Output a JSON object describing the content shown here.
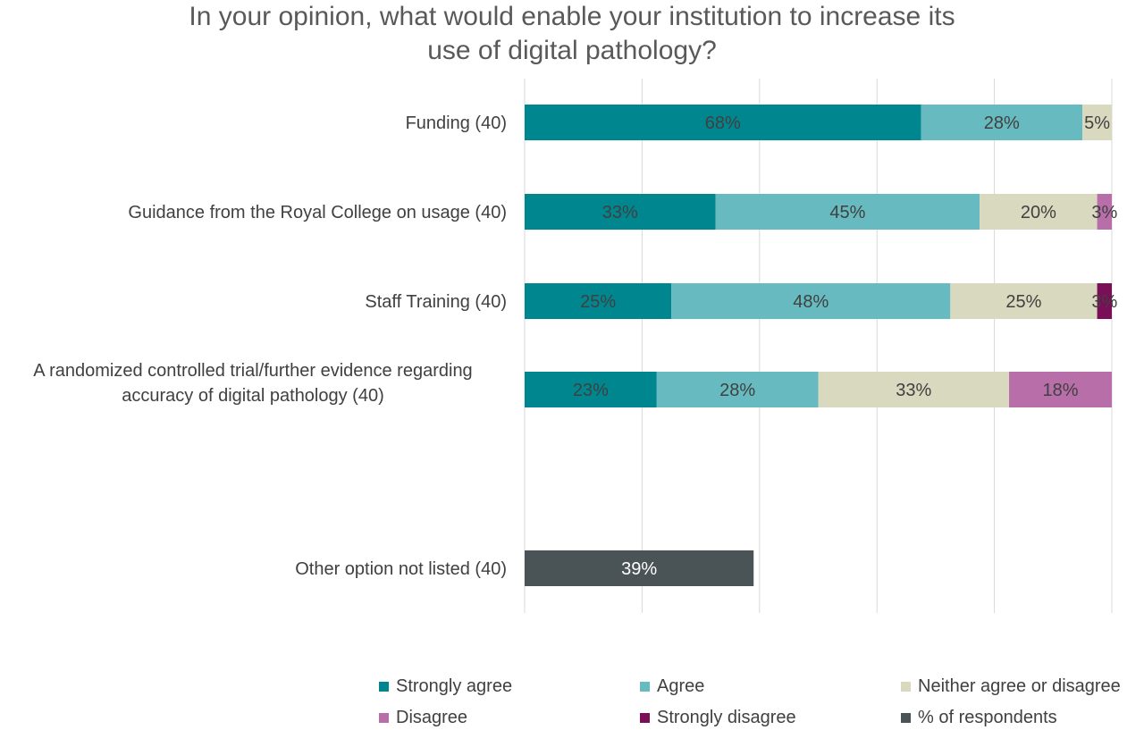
{
  "chart_data": {
    "type": "bar",
    "orientation": "horizontal",
    "stacked": true,
    "title_lines": [
      "In your opinion, what would enable your institution to increase its",
      "use of digital pathology?"
    ],
    "categories": [
      {
        "label_lines": [
          "Funding (40)"
        ]
      },
      {
        "label_lines": [
          "Guidance from the Royal College on usage (40)"
        ]
      },
      {
        "label_lines": [
          "Staff Training (40)"
        ]
      },
      {
        "label_lines": [
          "A randomized controlled trial/further evidence regarding",
          "accuracy of digital pathology (40)"
        ]
      },
      {
        "label_lines": []
      },
      {
        "label_lines": [
          "Other option not listed (40)"
        ]
      }
    ],
    "series": [
      {
        "name": "Strongly agree",
        "color": "#00868F",
        "label_color": "#404040",
        "values": [
          67.5,
          32.5,
          25,
          22.5,
          null,
          null
        ],
        "labels": [
          "68%",
          "33%",
          "25%",
          "23%",
          "",
          ""
        ]
      },
      {
        "name": "Agree",
        "color": "#67BBC0",
        "label_color": "#404040",
        "values": [
          27.5,
          45,
          47.5,
          27.5,
          null,
          null
        ],
        "labels": [
          "28%",
          "45%",
          "48%",
          "28%",
          "",
          ""
        ]
      },
      {
        "name": "Neither agree or disagree",
        "color": "#D9D9BF",
        "label_color": "#404040",
        "values": [
          5,
          20,
          25,
          32.5,
          null,
          null
        ],
        "labels": [
          "5%",
          "20%",
          "25%",
          "33%",
          "",
          ""
        ]
      },
      {
        "name": "Disagree",
        "color": "#B86EA8",
        "label_color": "#404040",
        "values": [
          0,
          2.5,
          0,
          17.5,
          null,
          null
        ],
        "labels": [
          "",
          "3%",
          "",
          "18%",
          "",
          ""
        ]
      },
      {
        "name": "Strongly disagree",
        "color": "#7A0E57",
        "label_color": "#404040",
        "values": [
          0,
          0,
          2.5,
          0,
          null,
          null
        ],
        "labels": [
          "",
          "",
          "3%",
          "",
          "",
          ""
        ]
      },
      {
        "name": "% of respondents",
        "color": "#4A5457",
        "label_color": "#ffffff",
        "values": [
          null,
          null,
          null,
          null,
          null,
          39
        ],
        "labels": [
          "",
          "",
          "",
          "",
          "",
          "39%"
        ]
      }
    ],
    "xlim": [
      0,
      100
    ],
    "x_gridlines": [
      0,
      20,
      40,
      60,
      80,
      100
    ],
    "grid": true,
    "legend_position": "bottom"
  }
}
